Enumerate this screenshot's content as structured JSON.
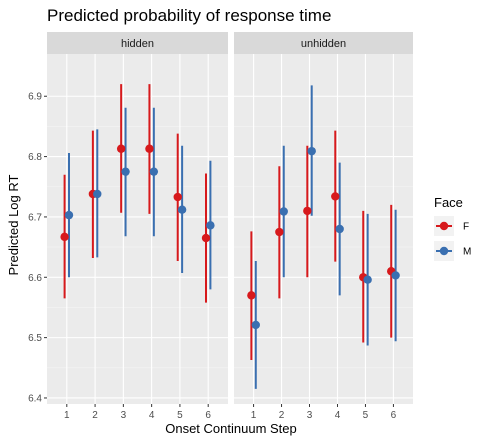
{
  "chart_data": {
    "type": "scatter",
    "title": "Predicted probability of response time",
    "xlabel": "Onset Continuum Step",
    "ylabel": "Predicted Log RT",
    "ylim": [
      6.39,
      6.97
    ],
    "yticks": [
      6.4,
      6.5,
      6.6,
      6.7,
      6.8,
      6.9
    ],
    "ytick_labels": [
      "6.4",
      "6.5",
      "6.6",
      "6.7",
      "6.8",
      "6.9"
    ],
    "categories": [
      "1",
      "2",
      "3",
      "4",
      "5",
      "6"
    ],
    "legend": {
      "title": "Face",
      "placement": "right"
    },
    "grid": true,
    "panels": [
      {
        "label": "hidden",
        "series": [
          {
            "name": "F",
            "color": "#d7191c",
            "values": [
              6.667,
              6.738,
              6.813,
              6.813,
              6.733,
              6.665
            ],
            "lower": [
              6.565,
              6.632,
              6.707,
              6.705,
              6.627,
              6.558
            ],
            "upper": [
              6.77,
              6.843,
              6.92,
              6.92,
              6.838,
              6.772
            ]
          },
          {
            "name": "M",
            "color": "#3a6fb0",
            "values": [
              6.703,
              6.738,
              6.775,
              6.775,
              6.712,
              6.686
            ],
            "lower": [
              6.6,
              6.633,
              6.668,
              6.668,
              6.607,
              6.58
            ],
            "upper": [
              6.806,
              6.845,
              6.881,
              6.881,
              6.818,
              6.793
            ]
          }
        ]
      },
      {
        "label": "unhidden",
        "series": [
          {
            "name": "F",
            "color": "#d7191c",
            "values": [
              6.57,
              6.675,
              6.71,
              6.734,
              6.6,
              6.61
            ],
            "lower": [
              6.463,
              6.565,
              6.6,
              6.626,
              6.492,
              6.5
            ],
            "upper": [
              6.676,
              6.784,
              6.818,
              6.843,
              6.71,
              6.72
            ]
          },
          {
            "name": "M",
            "color": "#3a6fb0",
            "values": [
              6.521,
              6.709,
              6.809,
              6.68,
              6.596,
              6.603
            ],
            "lower": [
              6.415,
              6.6,
              6.702,
              6.57,
              6.487,
              6.494
            ],
            "upper": [
              6.627,
              6.818,
              6.918,
              6.79,
              6.705,
              6.712
            ]
          }
        ]
      }
    ]
  }
}
